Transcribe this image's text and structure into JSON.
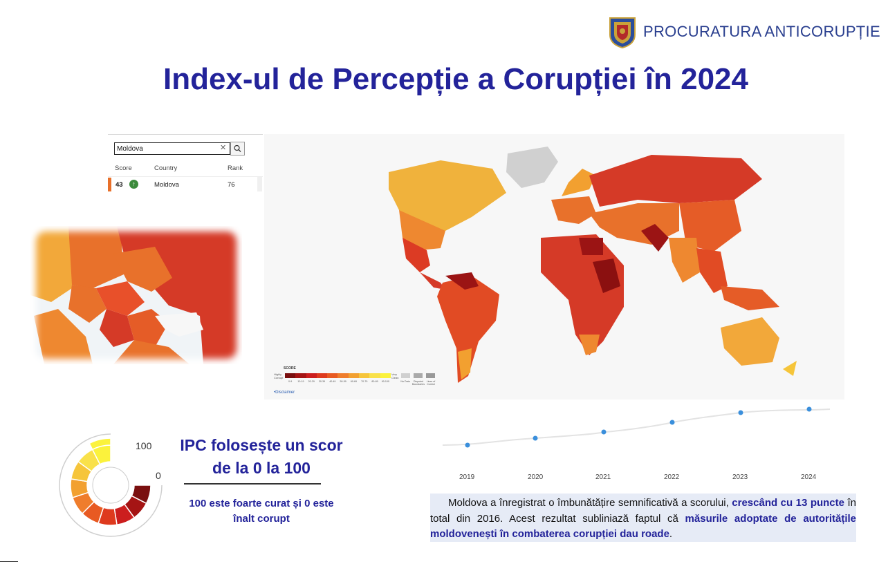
{
  "header": {
    "org_name": "PROCURATURA  ANTICORUPȚIE",
    "title": "Index-ul de Percepție a Corupției în 2024"
  },
  "search": {
    "value": "Moldova",
    "columns": {
      "score": "Score",
      "country": "Country",
      "rank": "Rank"
    },
    "result": {
      "score": "43",
      "country": "Moldova",
      "rank": "76",
      "trend": "up"
    }
  },
  "legend": {
    "title": "SCORE",
    "low_label": "Highly Corrupt",
    "high_label": "Very Clean",
    "ticks": [
      "0-9",
      "10-19",
      "20-29",
      "30-39",
      "40-49",
      "50-59",
      "60-69",
      "70-79",
      "80-89",
      "90-100"
    ],
    "colors": [
      "#7a0f0f",
      "#a51414",
      "#cc1e1e",
      "#de3a1e",
      "#e85a22",
      "#ef7d2c",
      "#f2a030",
      "#f6c53a",
      "#f9e14a",
      "#fbf23c"
    ],
    "no_data": "No Data",
    "disputed": "Disputed Boundaries",
    "area_of_control": "Lines of Control",
    "disclaimer": "Disclaimer"
  },
  "gauge": {
    "max_label": "100",
    "min_label": "0",
    "heading": "IPC folosește un scor de la 0 la 100",
    "subtitle": "100 este foarte curat și 0 este înalt corupt"
  },
  "trend": {
    "years": [
      "2019",
      "2020",
      "2021",
      "2022",
      "2023",
      "2024"
    ],
    "point_color": "#3a8fdc"
  },
  "summary": {
    "p1": "Moldova a înregistrat o îmbunătățire semnificativă a scorului, ",
    "h1": "crescând cu 13 puncte",
    "p2": " în total din 2016. Acest rezultat subliniază faptul că ",
    "h2": "măsurile adoptate de autoritățile moldovenești în combaterea corupției dau roade",
    "p3": "."
  }
}
